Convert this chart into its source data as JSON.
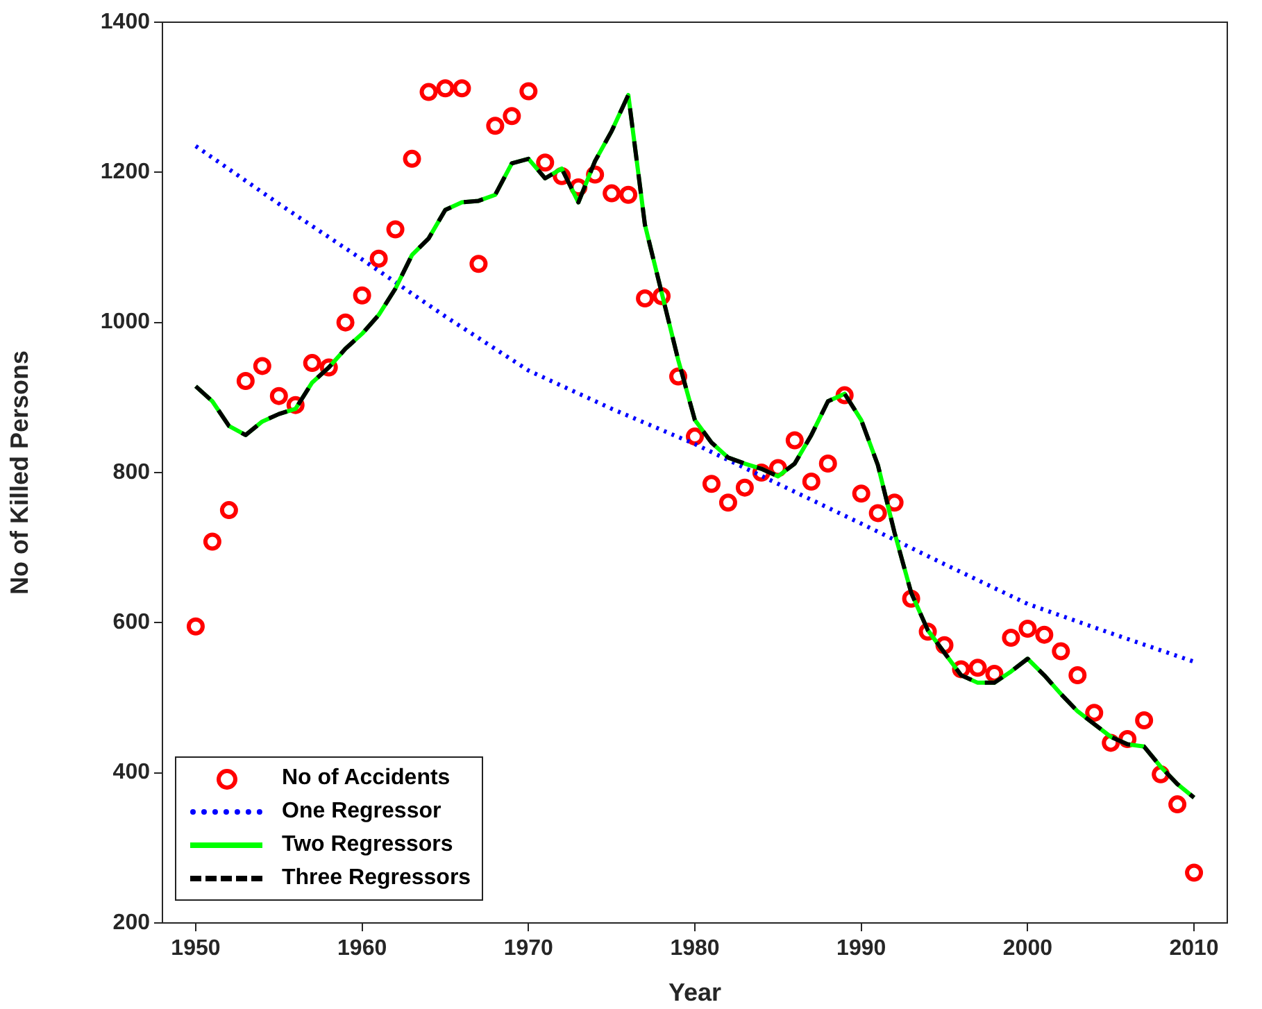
{
  "chart_data": {
    "type": "line",
    "xlabel": "Year",
    "ylabel": "No of Killed Persons",
    "x": [
      1950,
      1951,
      1952,
      1953,
      1954,
      1955,
      1956,
      1957,
      1958,
      1959,
      1960,
      1961,
      1962,
      1963,
      1964,
      1965,
      1966,
      1967,
      1968,
      1969,
      1970,
      1971,
      1972,
      1973,
      1974,
      1975,
      1976,
      1977,
      1978,
      1979,
      1980,
      1981,
      1982,
      1983,
      1984,
      1985,
      1986,
      1987,
      1988,
      1989,
      1990,
      1991,
      1992,
      1993,
      1994,
      1995,
      1996,
      1997,
      1998,
      1999,
      2000,
      2001,
      2002,
      2003,
      2004,
      2005,
      2006,
      2007,
      2008,
      2009,
      2010
    ],
    "xlim": [
      1948,
      2012
    ],
    "xticks": [
      1950,
      1960,
      1970,
      1980,
      1990,
      2000,
      2010
    ],
    "ylim": [
      200,
      1400
    ],
    "yticks": [
      200,
      400,
      600,
      800,
      1000,
      1200,
      1400
    ],
    "grid": false,
    "legend": "bottom left",
    "series": [
      {
        "name": "No of Accidents",
        "type": "scatter",
        "marker": "circle",
        "color": "#ff0000",
        "values": [
          595,
          708,
          750,
          922,
          942,
          902,
          890,
          946,
          940,
          1000,
          1036,
          1085,
          1124,
          1218,
          1307,
          1312,
          1312,
          1078,
          1262,
          1275,
          1308,
          1213,
          1195,
          1180,
          1197,
          1172,
          1170,
          1032,
          1035,
          928,
          848,
          785,
          760,
          780,
          800,
          806,
          843,
          788,
          812,
          903,
          772,
          746,
          760,
          632,
          588,
          570,
          538,
          540,
          532,
          580,
          592,
          584,
          562,
          530,
          480,
          440,
          445,
          470,
          398,
          358,
          267
        ]
      },
      {
        "name": "One Regressor",
        "line_style": "dotted",
        "marker": "none",
        "color": "#0000ff",
        "x": [
          1950,
          1955,
          1960,
          1965,
          1970,
          1975,
          1980,
          1985,
          1990,
          1995,
          2000,
          2005,
          2010
        ],
        "values": [
          1235,
          1158,
          1084,
          1008,
          936,
          885,
          838,
          785,
          732,
          678,
          625,
          586,
          548
        ]
      },
      {
        "name": "Two Regressors",
        "line_style": "solid",
        "marker": "none",
        "color": "#00ff00",
        "values": [
          915,
          895,
          862,
          850,
          868,
          878,
          885,
          920,
          940,
          965,
          985,
          1010,
          1045,
          1090,
          1112,
          1150,
          1160,
          1162,
          1170,
          1212,
          1218,
          1192,
          1205,
          1160,
          1215,
          1255,
          1303,
          1130,
          1040,
          950,
          870,
          840,
          820,
          812,
          805,
          795,
          812,
          850,
          895,
          905,
          870,
          810,
          720,
          640,
          590,
          560,
          530,
          520,
          520,
          535,
          552,
          530,
          505,
          482,
          465,
          448,
          438,
          435,
          408,
          385,
          367
        ]
      },
      {
        "name": "Three Regressors",
        "line_style": "dashed",
        "marker": "none",
        "color": "#000000",
        "values": [
          915,
          895,
          862,
          850,
          868,
          878,
          885,
          920,
          940,
          965,
          985,
          1010,
          1045,
          1090,
          1112,
          1150,
          1160,
          1162,
          1170,
          1212,
          1218,
          1192,
          1205,
          1160,
          1215,
          1255,
          1303,
          1130,
          1040,
          950,
          870,
          840,
          820,
          812,
          805,
          795,
          812,
          850,
          895,
          905,
          870,
          810,
          720,
          640,
          590,
          560,
          530,
          520,
          520,
          535,
          552,
          530,
          505,
          482,
          465,
          448,
          438,
          435,
          408,
          385,
          367
        ]
      }
    ]
  }
}
